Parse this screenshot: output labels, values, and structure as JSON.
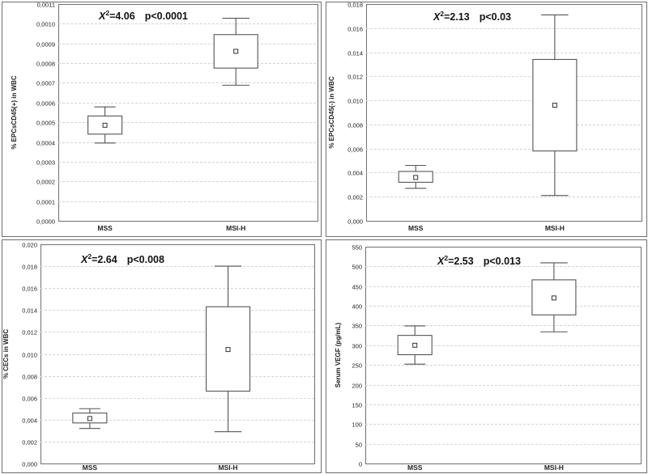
{
  "chart_data": [
    {
      "type": "box",
      "ylabel": "% EPCsCD45(+) in WBC",
      "ylim": [
        0,
        0.0011
      ],
      "yticks": [
        0,
        0.0001,
        0.0002,
        0.0003,
        0.0004,
        0.0005,
        0.0006,
        0.0007,
        0.0008,
        0.0009,
        0.001,
        0.0011
      ],
      "ytick_labels": [
        "0,0000",
        "0,0001",
        "0,0002",
        "0,0003",
        "0,0004",
        "0,0005",
        "0,0006",
        "0,0007",
        "0,0008",
        "0,0009",
        "0,0010",
        "0,0011"
      ],
      "categories": [
        "MSS",
        "MSI-H"
      ],
      "boxes": [
        {
          "whisker_low": 0.000395,
          "q1": 0.00044,
          "mean": 0.000485,
          "q3": 0.000532,
          "whisker_high": 0.000578
        },
        {
          "whisker_low": 0.000688,
          "q1": 0.000775,
          "mean": 0.00086,
          "q3": 0.000945,
          "whisker_high": 0.001028
        }
      ],
      "annotation": {
        "chi_symbol": "X",
        "chi_sup": "2",
        "stat_value": "=4.06",
        "p_text": "p<0.0001"
      },
      "grid": true
    },
    {
      "type": "box",
      "ylabel": "% EPCsCD45(-) in WBC",
      "ylim": [
        0,
        0.018
      ],
      "yticks": [
        0,
        0.002,
        0.004,
        0.006,
        0.008,
        0.01,
        0.012,
        0.014,
        0.016,
        0.018
      ],
      "ytick_labels": [
        "0,000",
        "0,002",
        "0,004",
        "0,006",
        "0,008",
        "0,010",
        "0,012",
        "0,014",
        "0,016",
        "0,018"
      ],
      "categories": [
        "MSS",
        "MSI-H"
      ],
      "boxes": [
        {
          "whisker_low": 0.0027,
          "q1": 0.0032,
          "mean": 0.0036,
          "q3": 0.0041,
          "whisker_high": 0.0046
        },
        {
          "whisker_low": 0.0021,
          "q1": 0.0058,
          "mean": 0.0096,
          "q3": 0.0134,
          "whisker_high": 0.0171
        }
      ],
      "annotation": {
        "chi_symbol": "X",
        "chi_sup": "2",
        "stat_value": "=2.13",
        "p_text": "p<0.03"
      },
      "grid": true
    },
    {
      "type": "box",
      "ylabel": "% CECs in WBC",
      "ylim": [
        0,
        0.02
      ],
      "yticks": [
        0,
        0.002,
        0.004,
        0.006,
        0.008,
        0.01,
        0.012,
        0.014,
        0.016,
        0.018,
        0.02
      ],
      "ytick_labels": [
        "0,000",
        "0,002",
        "0,004",
        "0,006",
        "0,008",
        "0,010",
        "0,012",
        "0,014",
        "0,016",
        "0,018",
        "0,020"
      ],
      "categories": [
        "MSS",
        "MSI-H"
      ],
      "boxes": [
        {
          "whisker_low": 0.0032,
          "q1": 0.0037,
          "mean": 0.0041,
          "q3": 0.0046,
          "whisker_high": 0.005
        },
        {
          "whisker_low": 0.0029,
          "q1": 0.0066,
          "mean": 0.0104,
          "q3": 0.0143,
          "whisker_high": 0.018
        }
      ],
      "annotation": {
        "chi_symbol": "X",
        "chi_sup": "2",
        "stat_value": "=2.64",
        "p_text": "p<0.008"
      },
      "grid": true
    },
    {
      "type": "box",
      "ylabel": "Serum VEGF (pg/mL)",
      "ylim": [
        0,
        550
      ],
      "yticks": [
        0,
        50,
        100,
        150,
        200,
        250,
        300,
        350,
        400,
        450,
        500,
        550
      ],
      "ytick_labels": [
        "0",
        "50",
        "100",
        "150",
        "200",
        "250",
        "300",
        "350",
        "400",
        "450",
        "500",
        "550"
      ],
      "categories": [
        "MSS",
        "MSI-H"
      ],
      "boxes": [
        {
          "whisker_low": 252,
          "q1": 276,
          "mean": 300,
          "q3": 325,
          "whisker_high": 349
        },
        {
          "whisker_low": 334,
          "q1": 377,
          "mean": 420,
          "q3": 466,
          "whisker_high": 509
        }
      ],
      "annotation": {
        "chi_symbol": "X",
        "chi_sup": "2",
        "stat_value": "=2.53",
        "p_text": "p<0.013"
      },
      "grid": true
    }
  ]
}
